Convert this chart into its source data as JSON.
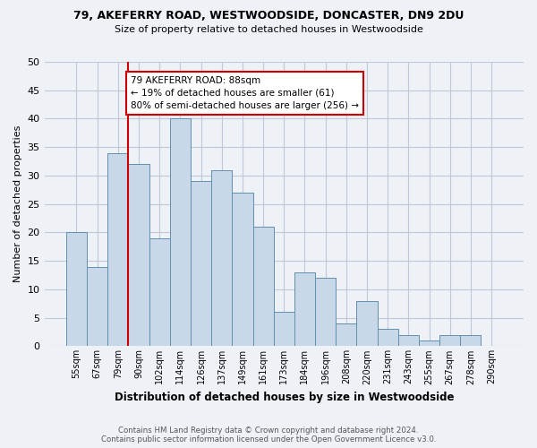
{
  "title1": "79, AKEFERRY ROAD, WESTWOODSIDE, DONCASTER, DN9 2DU",
  "title2": "Size of property relative to detached houses in Westwoodside",
  "xlabel": "Distribution of detached houses by size in Westwoodside",
  "ylabel": "Number of detached properties",
  "categories": [
    "55sqm",
    "67sqm",
    "79sqm",
    "90sqm",
    "102sqm",
    "114sqm",
    "126sqm",
    "137sqm",
    "149sqm",
    "161sqm",
    "173sqm",
    "184sqm",
    "196sqm",
    "208sqm",
    "220sqm",
    "231sqm",
    "243sqm",
    "255sqm",
    "267sqm",
    "278sqm",
    "290sqm"
  ],
  "values": [
    20,
    14,
    34,
    32,
    19,
    40,
    29,
    31,
    27,
    21,
    6,
    13,
    12,
    4,
    8,
    3,
    2,
    1,
    2,
    2,
    0
  ],
  "bar_color": "#c8d8e8",
  "bar_edge_color": "#6090b0",
  "grid_color": "#c0c8d8",
  "vline_color": "#cc0000",
  "annotation_text": "79 AKEFERRY ROAD: 88sqm\n← 19% of detached houses are smaller (61)\n80% of semi-detached houses are larger (256) →",
  "annotation_box_color": "#ffffff",
  "annotation_box_edge": "#cc0000",
  "footnote1": "Contains HM Land Registry data © Crown copyright and database right 2024.",
  "footnote2": "Contains public sector information licensed under the Open Government Licence v3.0.",
  "ylim": [
    0,
    50
  ],
  "yticks": [
    0,
    5,
    10,
    15,
    20,
    25,
    30,
    35,
    40,
    45,
    50
  ],
  "background_color": "#eef2f7"
}
